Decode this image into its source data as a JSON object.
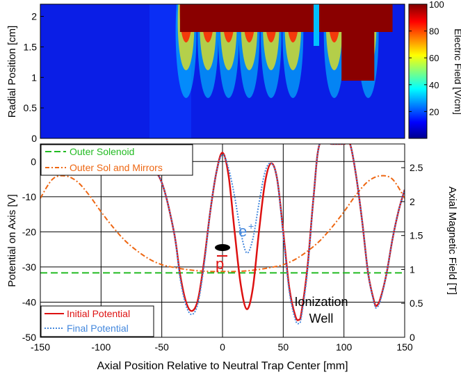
{
  "chart_data": [
    {
      "type": "heatmap",
      "ylabel": "Radial Position [cm]",
      "colorbar_label": "Electric Field [V/cm]",
      "xlim": [
        -150,
        150
      ],
      "ylim": [
        0,
        2.2
      ],
      "yticks": [
        0,
        0.5,
        1,
        1.5,
        2
      ],
      "yticklabels": [
        "0",
        "0.5",
        "1",
        "1.5",
        "2"
      ],
      "colorbar_range": [
        0,
        100
      ],
      "colorbar_ticks": [
        20,
        40,
        60,
        80,
        100
      ],
      "colorbar_ticklabels": [
        "20",
        "40",
        "60",
        "80",
        "100"
      ],
      "colormap": [
        "#00008f",
        "#0000ff",
        "#00ffff",
        "#ffff00",
        "#ff0000",
        "#800000"
      ]
    },
    {
      "type": "line",
      "xlabel": "Axial Position Relative to Neutral Trap Center [mm]",
      "ylabel": "Potential on Axis [V]",
      "y2label": "Axial Magnetic Field [T]",
      "xlim": [
        -150,
        150
      ],
      "ylim": [
        -50,
        5
      ],
      "y2lim": [
        0,
        2.85
      ],
      "xticks": [
        -150,
        -100,
        -50,
        0,
        50,
        100,
        150
      ],
      "xticklabels": [
        "-150",
        "-100",
        "-50",
        "0",
        "50",
        "100",
        "150"
      ],
      "yticks": [
        -50,
        -40,
        -30,
        -20,
        -10,
        0
      ],
      "yticklabels": [
        "-50",
        "-40",
        "-30",
        "-20",
        "-10",
        "0"
      ],
      "y2ticks": [
        0,
        0.5,
        1,
        1.5,
        2,
        2.5
      ],
      "y2ticklabels": [
        "0",
        "0.5",
        "1",
        "1.5",
        "2",
        "2.5"
      ],
      "grid": true,
      "legend_top": [
        {
          "label": "Outer Solenoid",
          "color": "#22bb22",
          "style": "dashed"
        },
        {
          "label": "Outer Sol and Mirrors",
          "color": "#ee6611",
          "style": "dashdot"
        }
      ],
      "legend_bottom": [
        {
          "label": "Initial Potential",
          "color": "#dd1111",
          "style": "solid"
        },
        {
          "label": "Final Potential",
          "color": "#4488dd",
          "style": "dotted"
        }
      ],
      "series": [
        {
          "name": "Initial Potential",
          "axis": "left",
          "color": "#dd1111",
          "x": [
            -150,
            -100,
            -80,
            -60,
            -50,
            -40,
            -35,
            -30,
            -25,
            -20,
            -15,
            -10,
            -5,
            0,
            5,
            10,
            15,
            20,
            25,
            30,
            35,
            40,
            45,
            50,
            55,
            60,
            63,
            65,
            70,
            75,
            80,
            90,
            100,
            105,
            110,
            115,
            120,
            125,
            127,
            130,
            135,
            140,
            145,
            150
          ],
          "y": [
            0,
            0,
            -0.5,
            -2,
            -6,
            -20,
            -32,
            -40,
            -42.5,
            -39,
            -28,
            -14,
            -3,
            2.5,
            -4,
            -20,
            -35,
            -42,
            -36,
            -20,
            -6,
            -0.5,
            -5,
            -20,
            -36,
            -44,
            -45,
            -43,
            -30,
            -10,
            5,
            5,
            5,
            5,
            -4,
            -17,
            -32,
            -40,
            -41,
            -39,
            -32,
            -22,
            -14,
            -8
          ]
        },
        {
          "name": "Final Potential",
          "axis": "left",
          "color": "#4488dd",
          "x": [
            -150,
            -100,
            -80,
            -60,
            -50,
            -40,
            -35,
            -30,
            -25,
            -20,
            -15,
            -10,
            -5,
            0,
            5,
            10,
            15,
            20,
            25,
            30,
            35,
            40,
            45,
            50,
            55,
            60,
            63,
            65,
            70,
            75,
            80,
            90,
            100,
            105,
            110,
            115,
            120,
            125,
            127,
            130,
            135,
            140,
            145,
            150
          ],
          "y": [
            0,
            0,
            -0.5,
            -2,
            -6,
            -20,
            -33,
            -41,
            -43.5,
            -40,
            -29,
            -14,
            -3,
            2,
            -2,
            -10,
            -20,
            -26,
            -22,
            -12,
            -3,
            -0.5,
            -5,
            -21,
            -37,
            -45,
            -46,
            -44,
            -31,
            -10,
            5,
            5,
            5,
            5,
            -4,
            -17,
            -32,
            -40.5,
            -41.5,
            -39.5,
            -32,
            -22,
            -14,
            -8
          ]
        },
        {
          "name": "Outer Solenoid",
          "axis": "right",
          "color": "#22bb22",
          "x": [
            -150,
            150
          ],
          "y": [
            0.95,
            0.95
          ]
        },
        {
          "name": "Outer Sol and Mirrors",
          "axis": "right",
          "color": "#ee6611",
          "x": [
            -150,
            -140,
            -130,
            -120,
            -110,
            -100,
            -90,
            -80,
            -70,
            -60,
            -50,
            -40,
            -30,
            -20,
            -10,
            0,
            10,
            20,
            30,
            40,
            50,
            60,
            70,
            80,
            90,
            100,
            110,
            120,
            130,
            140,
            150
          ],
          "y": [
            2.05,
            2.33,
            2.38,
            2.3,
            2.1,
            1.85,
            1.62,
            1.42,
            1.27,
            1.15,
            1.07,
            1.03,
            1.0,
            0.98,
            0.97,
            0.97,
            0.97,
            0.98,
            1.0,
            1.03,
            1.07,
            1.15,
            1.27,
            1.42,
            1.62,
            1.85,
            2.1,
            2.3,
            2.38,
            2.33,
            2.05
          ]
        }
      ],
      "annotations": [
        "e",
        "+",
        "p",
        "Ionization",
        "Well"
      ]
    }
  ]
}
